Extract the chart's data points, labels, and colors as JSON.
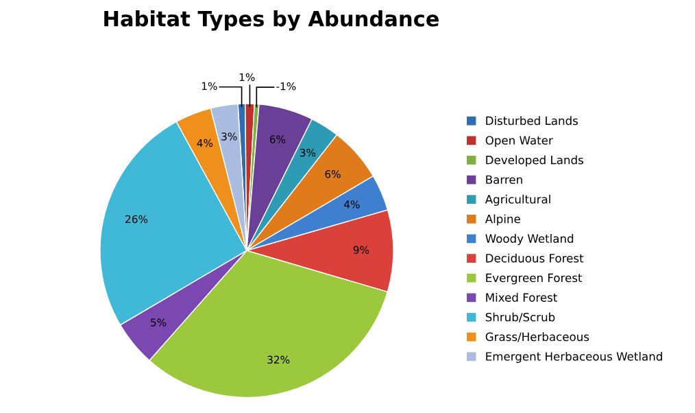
{
  "chart_data": {
    "type": "pie",
    "title": "Habitat Types by Abundance",
    "categories": [
      "Disturbed Lands",
      "Open Water",
      "Developed Lands",
      "Barren",
      "Agricultural",
      "Alpine",
      "Woody Wetland",
      "Deciduous Forest",
      "Evergreen Forest",
      "Mixed Forest",
      "Shrub/Scrub",
      "Grass/Herbaceous",
      "Emergent Herbaceous Wetland"
    ],
    "values": [
      0.8,
      1,
      0.5,
      6,
      3.2,
      6,
      4,
      9,
      32,
      5,
      25.5,
      4,
      3
    ],
    "value_labels": [
      "1%",
      "1%",
      null,
      "6%",
      "3%",
      "6%",
      "4%",
      "9%",
      "32%",
      "5%",
      "26%",
      "4%",
      "3%"
    ],
    "colors": [
      "#2f6cb0",
      "#c0302c",
      "#80b040",
      "#6a3f98",
      "#2e9bb5",
      "#e07b1c",
      "#3f7fd0",
      "#d9413a",
      "#9bc83c",
      "#7a48b0",
      "#40b8d8",
      "#f0901c",
      "#aabde0"
    ],
    "annotations": [
      {
        "text": "-1%",
        "x": "Developed Lands"
      }
    ],
    "legend": "right"
  }
}
